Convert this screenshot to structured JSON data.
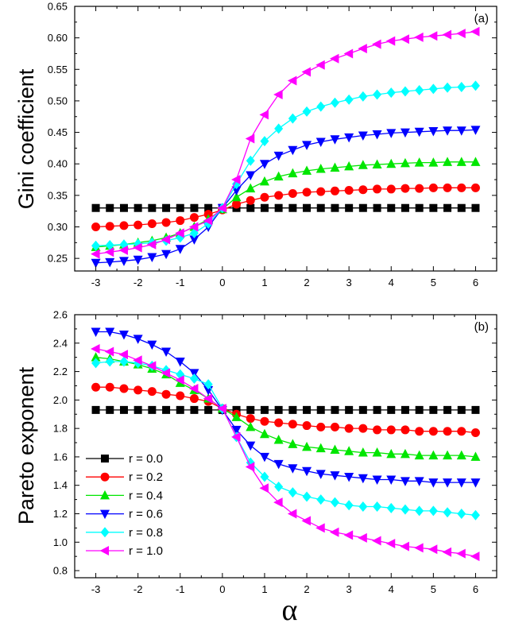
{
  "chart_data": [
    {
      "type": "line",
      "panel_label": "(a)",
      "ylabel": "Gini coefficient",
      "xlabel": "",
      "xlim": [
        -3.5,
        6.5
      ],
      "ylim": [
        0.23,
        0.65
      ],
      "xticks": [
        "-3",
        "-2",
        "-1",
        "0",
        "1",
        "2",
        "3",
        "4",
        "5",
        "6"
      ],
      "yticks": [
        "0.25",
        "0.30",
        "0.35",
        "0.40",
        "0.45",
        "0.50",
        "0.55",
        "0.60",
        "0.65"
      ],
      "x": [
        -3,
        -2.667,
        -2.333,
        -2,
        -1.667,
        -1.333,
        -1,
        -0.667,
        -0.333,
        0,
        0.333,
        0.667,
        1,
        1.333,
        1.667,
        2,
        2.333,
        2.667,
        3,
        3.333,
        3.667,
        4,
        4.333,
        4.667,
        5,
        5.333,
        5.667,
        6
      ],
      "series": [
        {
          "name": "r = 0.0",
          "values": [
            0.33,
            0.33,
            0.33,
            0.33,
            0.33,
            0.33,
            0.33,
            0.33,
            0.33,
            0.33,
            0.33,
            0.33,
            0.33,
            0.33,
            0.33,
            0.33,
            0.33,
            0.33,
            0.33,
            0.33,
            0.33,
            0.33,
            0.33,
            0.33,
            0.33,
            0.33,
            0.33,
            0.33
          ]
        },
        {
          "name": "r = 0.2",
          "values": [
            0.3,
            0.301,
            0.302,
            0.303,
            0.305,
            0.307,
            0.31,
            0.315,
            0.32,
            0.327,
            0.336,
            0.342,
            0.347,
            0.35,
            0.353,
            0.355,
            0.356,
            0.357,
            0.358,
            0.359,
            0.36,
            0.36,
            0.361,
            0.361,
            0.362,
            0.362,
            0.362,
            0.362
          ]
        },
        {
          "name": "r = 0.4",
          "values": [
            0.268,
            0.27,
            0.272,
            0.275,
            0.278,
            0.283,
            0.29,
            0.3,
            0.312,
            0.328,
            0.347,
            0.361,
            0.372,
            0.38,
            0.385,
            0.389,
            0.392,
            0.394,
            0.396,
            0.398,
            0.399,
            0.4,
            0.401,
            0.402,
            0.402,
            0.403,
            0.403,
            0.403
          ]
        },
        {
          "name": "r = 0.6",
          "values": [
            0.243,
            0.244,
            0.246,
            0.248,
            0.252,
            0.257,
            0.265,
            0.28,
            0.3,
            0.33,
            0.358,
            0.382,
            0.4,
            0.413,
            0.422,
            0.43,
            0.435,
            0.439,
            0.442,
            0.445,
            0.447,
            0.449,
            0.45,
            0.451,
            0.452,
            0.453,
            0.453,
            0.454
          ]
        },
        {
          "name": "r = 0.8",
          "values": [
            0.27,
            0.271,
            0.272,
            0.273,
            0.275,
            0.278,
            0.283,
            0.29,
            0.305,
            0.33,
            0.368,
            0.405,
            0.436,
            0.456,
            0.472,
            0.483,
            0.491,
            0.497,
            0.502,
            0.507,
            0.51,
            0.513,
            0.515,
            0.517,
            0.519,
            0.521,
            0.522,
            0.524
          ]
        },
        {
          "name": "r = 1.0",
          "values": [
            0.257,
            0.26,
            0.263,
            0.267,
            0.272,
            0.28,
            0.29,
            0.3,
            0.31,
            0.33,
            0.375,
            0.44,
            0.478,
            0.51,
            0.532,
            0.546,
            0.557,
            0.567,
            0.575,
            0.583,
            0.59,
            0.595,
            0.598,
            0.601,
            0.603,
            0.605,
            0.607,
            0.61
          ]
        }
      ]
    },
    {
      "type": "line",
      "panel_label": "(b)",
      "ylabel": "Pareto exponent",
      "xlabel": "α",
      "xlim": [
        -3.5,
        6.5
      ],
      "ylim": [
        0.75,
        2.6
      ],
      "xticks": [
        "-3",
        "-2",
        "-1",
        "0",
        "1",
        "2",
        "3",
        "4",
        "5",
        "6"
      ],
      "yticks": [
        "0.8",
        "1.0",
        "1.2",
        "1.4",
        "1.6",
        "1.8",
        "2.0",
        "2.2",
        "2.4",
        "2.6"
      ],
      "legend_position": "bottom-left",
      "x": [
        -3,
        -2.667,
        -2.333,
        -2,
        -1.667,
        -1.333,
        -1,
        -0.667,
        -0.333,
        0,
        0.333,
        0.667,
        1,
        1.333,
        1.667,
        2,
        2.333,
        2.667,
        3,
        3.333,
        3.667,
        4,
        4.333,
        4.667,
        5,
        5.333,
        5.667,
        6
      ],
      "series": [
        {
          "name": "r = 0.0",
          "values": [
            1.93,
            1.93,
            1.93,
            1.93,
            1.93,
            1.93,
            1.93,
            1.93,
            1.93,
            1.93,
            1.93,
            1.93,
            1.93,
            1.93,
            1.93,
            1.93,
            1.93,
            1.93,
            1.93,
            1.93,
            1.93,
            1.93,
            1.93,
            1.93,
            1.93,
            1.93,
            1.93,
            1.93
          ]
        },
        {
          "name": "r = 0.2",
          "values": [
            2.09,
            2.09,
            2.08,
            2.07,
            2.06,
            2.04,
            2.03,
            2.01,
            1.99,
            1.94,
            1.9,
            1.87,
            1.85,
            1.84,
            1.83,
            1.82,
            1.81,
            1.81,
            1.8,
            1.8,
            1.79,
            1.79,
            1.79,
            1.78,
            1.78,
            1.78,
            1.78,
            1.77
          ]
        },
        {
          "name": "r = 0.4",
          "values": [
            2.3,
            2.29,
            2.27,
            2.25,
            2.22,
            2.18,
            2.12,
            2.07,
            2.01,
            1.94,
            1.88,
            1.81,
            1.76,
            1.72,
            1.69,
            1.67,
            1.66,
            1.65,
            1.64,
            1.63,
            1.63,
            1.62,
            1.62,
            1.61,
            1.61,
            1.61,
            1.61,
            1.6
          ]
        },
        {
          "name": "r = 0.6",
          "values": [
            2.48,
            2.48,
            2.46,
            2.43,
            2.39,
            2.34,
            2.27,
            2.19,
            2.07,
            1.93,
            1.79,
            1.68,
            1.6,
            1.55,
            1.52,
            1.5,
            1.48,
            1.47,
            1.46,
            1.45,
            1.44,
            1.44,
            1.43,
            1.43,
            1.42,
            1.42,
            1.42,
            1.42
          ]
        },
        {
          "name": "r = 0.8",
          "values": [
            2.26,
            2.27,
            2.27,
            2.26,
            2.24,
            2.21,
            2.18,
            2.15,
            2.11,
            1.94,
            1.74,
            1.56,
            1.46,
            1.39,
            1.35,
            1.32,
            1.3,
            1.28,
            1.26,
            1.25,
            1.25,
            1.24,
            1.23,
            1.22,
            1.22,
            1.21,
            1.2,
            1.19
          ]
        },
        {
          "name": "r = 1.0",
          "values": [
            2.36,
            2.34,
            2.32,
            2.28,
            2.24,
            2.19,
            2.14,
            2.08,
            2.01,
            1.94,
            1.74,
            1.53,
            1.38,
            1.28,
            1.2,
            1.15,
            1.1,
            1.07,
            1.05,
            1.03,
            1.01,
            0.99,
            0.97,
            0.96,
            0.95,
            0.93,
            0.92,
            0.9
          ]
        }
      ]
    }
  ],
  "series_styles": [
    {
      "color": "#000000",
      "marker": "square"
    },
    {
      "color": "#ff0000",
      "marker": "circle"
    },
    {
      "color": "#00e600",
      "marker": "triangle-up"
    },
    {
      "color": "#0000ff",
      "marker": "triangle-down"
    },
    {
      "color": "#00ffff",
      "marker": "diamond"
    },
    {
      "color": "#ff00ff",
      "marker": "triangle-left"
    }
  ]
}
